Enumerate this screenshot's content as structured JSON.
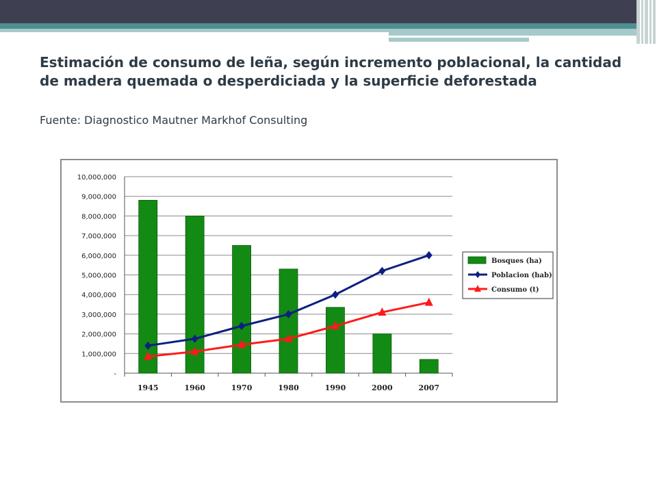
{
  "page": {
    "title": "Estimación de consumo de leña, según incremento poblacional, la cantidad de madera quemada o desperdiciada y la superficie deforestada",
    "source": "Fuente: Diagnostico Mautner Markhof Consulting"
  },
  "colors": {
    "header_dark": "#3f3f52",
    "header_teal": "#4f8f8f",
    "bosques": "#138a13",
    "poblacion": "#0c1f80",
    "consumo": "#ff1a1a"
  },
  "chart_data": {
    "type": "bar",
    "categories": [
      "1945",
      "1960",
      "1970",
      "1980",
      "1990",
      "2000",
      "2007"
    ],
    "series": [
      {
        "name": "Bosques (ha)",
        "type": "bar",
        "values": [
          8800000,
          8000000,
          6500000,
          5300000,
          3350000,
          2000000,
          700000
        ]
      },
      {
        "name": "Poblacion (hab)",
        "type": "line",
        "marker": "diamond",
        "values": [
          1400000,
          1750000,
          2400000,
          3000000,
          4000000,
          5200000,
          6000000
        ]
      },
      {
        "name": "Consumo (t)",
        "type": "line",
        "marker": "triangle",
        "values": [
          850000,
          1100000,
          1450000,
          1750000,
          2400000,
          3100000,
          3600000
        ]
      }
    ],
    "yticks": [
      "-",
      "1,000,000",
      "2,000,000",
      "3,000,000",
      "4,000,000",
      "5,000,000",
      "6,000,000",
      "7,000,000",
      "8,000,000",
      "9,000,000",
      "10,000,000"
    ],
    "ylim": [
      0,
      10000000
    ],
    "grid": true,
    "legend_position": "right",
    "xlabel": "",
    "ylabel": ""
  }
}
